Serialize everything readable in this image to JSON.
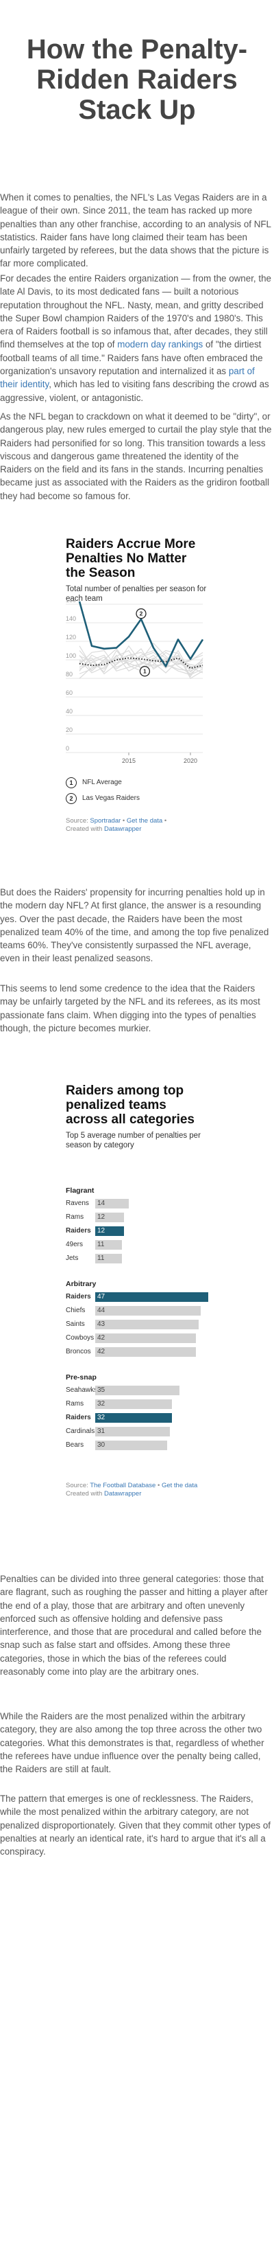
{
  "title": "How the Penalty-Ridden Raiders Stack Up",
  "paragraphs": {
    "p1": "When it comes to penalties, the NFL's Las Vegas Raiders are in a league of their own. Since 2011, the team has racked up more penalties than any other franchise, according to an analysis of NFL statistics. Raider fans have long claimed their team has been unfairly targeted by referees, but the data shows that the picture is far more complicated.",
    "p2_a": "For decades the entire Raiders organization — from the owner, the late Al Davis, to its most dedicated fans — built a notorious reputation throughout the NFL. Nasty, mean, and gritty described the Super Bowl champion Raiders of the 1970's and 1980's. This era of Raiders football is so infamous that, after decades, they still find themselves at the top of ",
    "p2_link1": "modern day rankings",
    "p2_b": " of \"the dirtiest football teams of all time.\" Raiders fans have often embraced the organization's unsavory reputation and internalized it as ",
    "p2_link2": "part of their identity",
    "p2_c": ", which has led to visiting fans describing the crowd as aggressive, violent, or antagonistic.",
    "p3": "As the NFL began to crackdown on what it deemed to be \"dirty\", or dangerous play, new rules emerged to curtail the play style that the Raiders had personified for so long. This transition towards a less viscous and dangerous game threatened the identity of the Raiders on the field and its fans in the stands. Incurring penalties became just as associated with the Raiders as the gridiron football they had become so famous for.",
    "p4": "But does the Raiders' propensity for incurring penalties hold up in the modern day NFL? At first glance, the answer is a resounding yes. Over the past decade, the Raiders have been the most penalized team 40% of the time, and among the top five penalized teams 60%. They've consistently surpassed the NFL average, even in their least penalized seasons.",
    "p5": "This seems to lend some credence to the idea that the Raiders may be unfairly targeted by the NFL and its referees, as its most passionate fans claim. When digging into the types of penalties though, the picture becomes murkier.",
    "p6": "Penalties can be divided into three general categories: those that are flagrant, such as roughing the passer and hitting a player after the end of a play, those that are arbitrary and often unevenly enforced such as offensive holding and defensive pass interference, and those that are procedural and called before the snap such as false start and offsides. Among these three categories, those in which the bias of the referees could reasonably come into play are the arbitrary ones.",
    "p7": "While the Raiders are the most penalized within the arbitrary category, they are also among the top three across the other two categories. What this demonstrates is that, regardless of whether the referees have undue influence over the penalty being called, the Raiders are still at fault.",
    "p8": "The pattern that emerges is one of recklessness. The Raiders, while the most penalized within the arbitrary category, are not penalized disproportionately. Given that they commit other types of penalties at nearly an identical rate, it's hard to argue that it's all a conspiracy."
  },
  "chart1": {
    "title": "Raiders Accrue More Penalties No Matter the Season",
    "subtitle": "Total number of penalties per season for each team",
    "legend": [
      {
        "num": "1",
        "label": "NFL Average"
      },
      {
        "num": "2",
        "label": "Las Vegas Raiders"
      }
    ],
    "source_prefix": "Source: ",
    "source_name": "Sportradar",
    "source_sep": " • ",
    "source_link": "Get the data",
    "created": "Created with ",
    "created_link": "Datawrapper"
  },
  "chart2": {
    "title": "Raiders among top penalized teams across all categories",
    "subtitle": "Top 5 average number of penalties per season by category",
    "source_prefix": "Source: ",
    "source_name": "The Football Database",
    "source_sep": " • ",
    "source_link": "Get the data",
    "created": "Created with ",
    "created_link": "Datawrapper"
  },
  "colors": {
    "raiders": "#1e5f78",
    "other": "#d2d2d2",
    "average_line": "#222222"
  },
  "chart_data": [
    {
      "type": "line",
      "title": "Raiders Accrue More Penalties No Matter the Season",
      "subtitle": "Total number of penalties per season for each team",
      "x": [
        2011,
        2012,
        2013,
        2014,
        2015,
        2016,
        2017,
        2018,
        2019,
        2020,
        2021
      ],
      "xticks": [
        "2015",
        "2020"
      ],
      "yticks": [
        "0",
        "20",
        "40",
        "60",
        "80",
        "100",
        "120",
        "140",
        "160"
      ],
      "ylim": [
        0,
        160
      ],
      "grid": true,
      "legend_position": "bottom",
      "series": [
        {
          "name": "Las Vegas Raiders",
          "values": [
            163,
            115,
            112,
            113,
            125,
            144,
            113,
            93,
            122,
            101,
            122
          ]
        },
        {
          "name": "NFL Average",
          "values": [
            96,
            94,
            95,
            100,
            102,
            101,
            99,
            98,
            102,
            91,
            94
          ]
        }
      ],
      "other_teams": [
        [
          85,
          90,
          100,
          95,
          105,
          98,
          92,
          96,
          88,
          84,
          90
        ],
        [
          104,
          99,
          87,
          110,
          95,
          105,
          110,
          102,
          97,
          90,
          100
        ],
        [
          92,
          100,
          105,
          88,
          92,
          96,
          105,
          91,
          110,
          87,
          98
        ],
        [
          100,
          86,
          92,
          104,
          110,
          90,
          95,
          108,
          100,
          95,
          92
        ],
        [
          88,
          105,
          98,
          97,
          100,
          112,
          90,
          99,
          105,
          80,
          88
        ],
        [
          110,
          95,
          90,
          105,
          88,
          95,
          102,
          92,
          96,
          100,
          105
        ],
        [
          95,
          108,
          110,
          92,
          98,
          100,
          118,
          104,
          93,
          85,
          95
        ],
        [
          80,
          92,
          94,
          100,
          105,
          108,
          97,
          86,
          99,
          92,
          86
        ],
        [
          105,
          88,
          100,
          112,
          94,
          88,
          101,
          110,
          107,
          82,
          102
        ],
        [
          98,
          102,
          85,
          95,
          115,
          97,
          94,
          95,
          90,
          88,
          97
        ],
        [
          90,
          97,
          103,
          90,
          100,
          103,
          108,
          97,
          104,
          93,
          91
        ],
        [
          115,
          93,
          97,
          102,
          96,
          92,
          99,
          101,
          95,
          99,
          108
        ]
      ]
    },
    {
      "type": "bar",
      "title": "Raiders among top penalized teams across all categories",
      "subtitle": "Top 5 average number of penalties per season by category",
      "groups": [
        {
          "name": "Flagrant",
          "categories": [
            "Ravens",
            "Rams",
            "Raiders",
            "49ers",
            "Jets"
          ],
          "values": [
            14,
            12,
            12,
            11,
            11
          ]
        },
        {
          "name": "Arbitrary",
          "categories": [
            "Raiders",
            "Chiefs",
            "Saints",
            "Cowboys",
            "Broncos"
          ],
          "values": [
            47,
            44,
            43,
            42,
            42
          ]
        },
        {
          "name": "Pre-snap",
          "categories": [
            "Seahawks",
            "Rams",
            "Raiders",
            "Cardinals",
            "Bears"
          ],
          "values": [
            35,
            32,
            32,
            31,
            30
          ]
        }
      ],
      "xlim": [
        0,
        47
      ]
    }
  ]
}
